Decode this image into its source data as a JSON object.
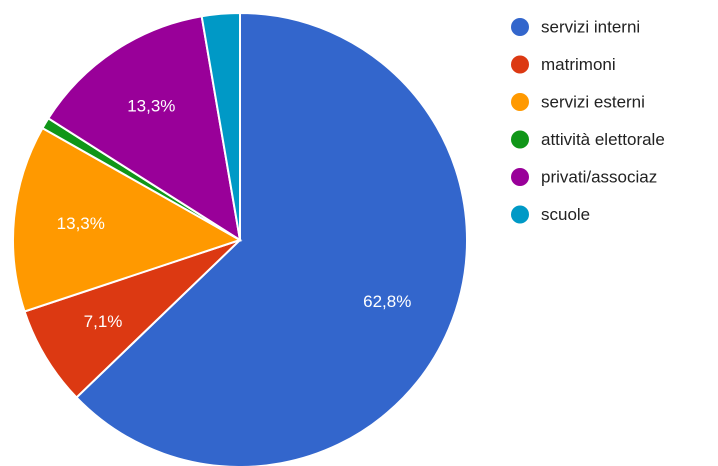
{
  "chart_data": {
    "type": "pie",
    "title": "",
    "start_angle_deg": 0,
    "slices": [
      {
        "label": "servizi interni",
        "value": 62.8,
        "display": "62,8%",
        "color": "#3366cc"
      },
      {
        "label": "matrimoni",
        "value": 7.1,
        "display": "7,1%",
        "color": "#dc3912"
      },
      {
        "label": "servizi esterni",
        "value": 13.3,
        "display": "13,3%",
        "color": "#ff9900"
      },
      {
        "label": "attività elettorale",
        "value": 0.8,
        "display": "",
        "color": "#109618"
      },
      {
        "label": "privati/associaz",
        "value": 13.3,
        "display": "13,3%",
        "color": "#990099"
      },
      {
        "label": "scuole",
        "value": 2.7,
        "display": "",
        "color": "#0099c6"
      }
    ],
    "legend": {
      "position": "right"
    }
  }
}
